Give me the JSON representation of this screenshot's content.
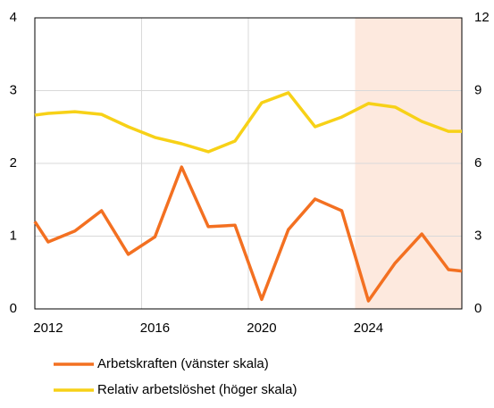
{
  "chart_data": {
    "type": "line",
    "x": [
      2011.5,
      2012,
      2013,
      2014,
      2015,
      2016,
      2017,
      2018,
      2019,
      2020,
      2021,
      2022,
      2023,
      2024,
      2025,
      2026,
      2027,
      2027.5
    ],
    "xlim": [
      2011.5,
      2027.5
    ],
    "xticks": [
      2012,
      2016,
      2020,
      2024
    ],
    "xgrid": [
      2015.5,
      2019.5
    ],
    "shade_from": 2023.5,
    "shade_color": "#fde9de",
    "ylim": [
      0,
      4
    ],
    "yticks": [
      0,
      1,
      2,
      3,
      4
    ],
    "y2lim": [
      0,
      12
    ],
    "y2ticks": [
      0,
      3,
      6,
      9,
      12
    ],
    "grid": true,
    "series": [
      {
        "name": "Arbetskraften (vänster skala)",
        "color": "#f37021",
        "values": [
          1.2,
          0.92,
          1.07,
          1.35,
          0.75,
          0.99,
          1.95,
          1.13,
          1.15,
          0.13,
          1.09,
          1.51,
          1.35,
          0.11,
          0.63,
          1.03,
          0.54,
          0.52
        ]
      },
      {
        "name": "Relativ arbetslöshet (höger skala)",
        "color": "#f7d117",
        "axis": "y2",
        "values": [
          7.99,
          8.06,
          8.13,
          8.02,
          7.51,
          7.07,
          6.81,
          6.48,
          6.92,
          8.5,
          8.91,
          7.51,
          7.91,
          8.47,
          8.32,
          7.73,
          7.32,
          7.32
        ]
      }
    ]
  }
}
